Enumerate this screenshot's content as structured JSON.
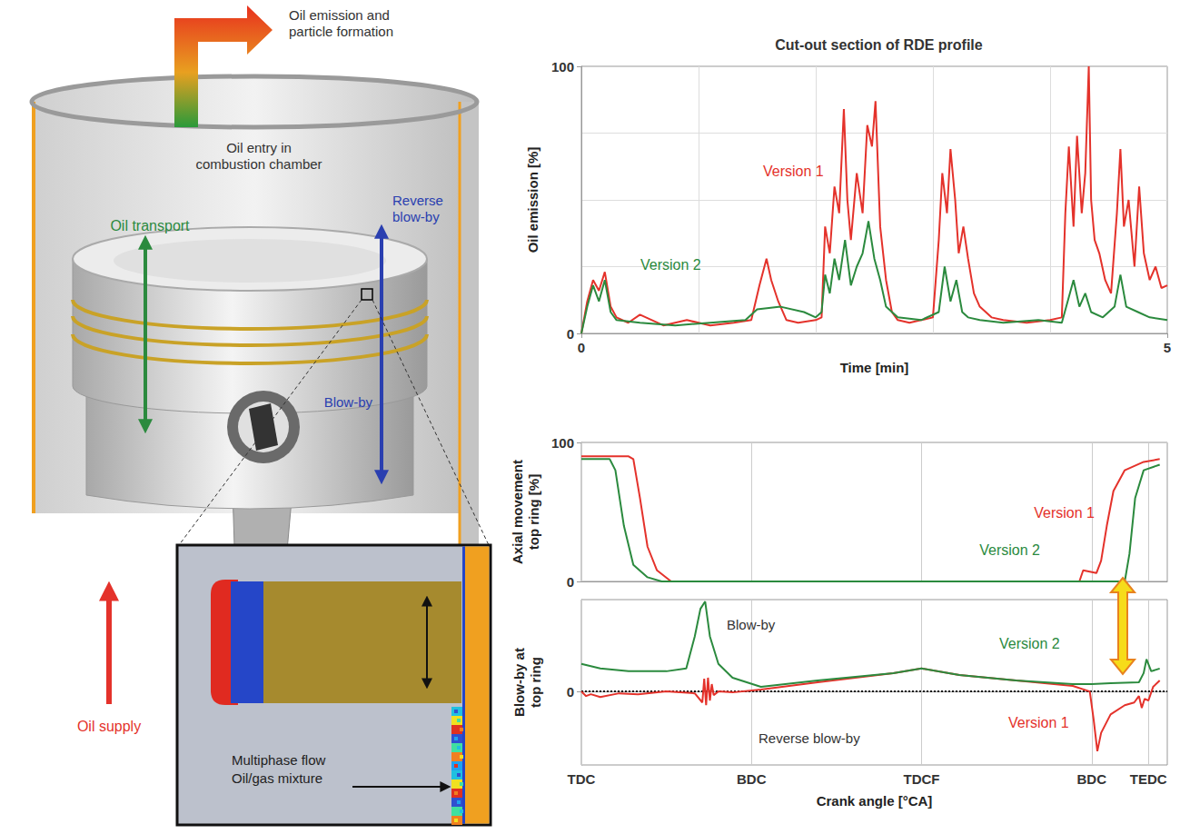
{
  "diagram": {
    "emission_arrow": "Oil emission and particle formation",
    "chamber": "Oil entry in combustion chamber",
    "oil_transport": "Oil transport",
    "reverse_blow_by": "Reverse blow-by",
    "blow_by": "Blow-by",
    "oil_supply": "Oil supply",
    "inset": "Multiphase flow Oil/gas mixture"
  },
  "chart_data": [
    {
      "type": "line",
      "title": "Cut-out section of RDE profile",
      "x_label": "Time [min]",
      "y_label": "Oil emission [%]",
      "xlim": [
        0,
        5
      ],
      "xticks": [
        0,
        5
      ],
      "ylim": [
        0,
        100
      ],
      "yticks": [
        0,
        100
      ],
      "grid": true,
      "series": [
        {
          "name": "Version 1",
          "color": "#e4322b",
          "x": [
            0,
            0.05,
            0.1,
            0.15,
            0.2,
            0.25,
            0.3,
            0.4,
            0.5,
            0.7,
            0.9,
            1.1,
            1.3,
            1.45,
            1.52,
            1.58,
            1.62,
            1.68,
            1.75,
            1.85,
            2.0,
            2.05,
            2.08,
            2.12,
            2.16,
            2.2,
            2.24,
            2.27,
            2.3,
            2.35,
            2.4,
            2.44,
            2.48,
            2.51,
            2.55,
            2.6,
            2.65,
            2.7,
            2.8,
            2.9,
            3.0,
            3.05,
            3.08,
            3.12,
            3.15,
            3.19,
            3.22,
            3.26,
            3.3,
            3.35,
            3.4,
            3.5,
            3.6,
            3.8,
            4.0,
            4.1,
            4.13,
            4.16,
            4.2,
            4.23,
            4.27,
            4.3,
            4.33,
            4.35,
            4.38,
            4.42,
            4.47,
            4.52,
            4.57,
            4.6,
            4.63,
            4.67,
            4.72,
            4.76,
            4.8,
            4.85,
            4.9,
            4.95,
            5.0
          ],
          "values": [
            0,
            12,
            20,
            16,
            23,
            10,
            6,
            4,
            7,
            3,
            5,
            3,
            4,
            5,
            18,
            28,
            20,
            12,
            5,
            4,
            5,
            6,
            40,
            30,
            55,
            45,
            84,
            50,
            35,
            60,
            45,
            78,
            70,
            87,
            40,
            20,
            8,
            5,
            4,
            5,
            6,
            35,
            60,
            45,
            69,
            50,
            30,
            40,
            28,
            15,
            10,
            6,
            5,
            4,
            5,
            6,
            45,
            70,
            40,
            74,
            45,
            60,
            100,
            50,
            35,
            30,
            20,
            15,
            45,
            69,
            40,
            50,
            25,
            55,
            30,
            20,
            25,
            17,
            18
          ]
        },
        {
          "name": "Version 2",
          "color": "#2b8a3e",
          "x": [
            0,
            0.05,
            0.1,
            0.15,
            0.2,
            0.25,
            0.3,
            0.5,
            0.8,
            1.1,
            1.4,
            1.5,
            1.7,
            1.9,
            2.0,
            2.05,
            2.08,
            2.12,
            2.16,
            2.2,
            2.25,
            2.3,
            2.35,
            2.4,
            2.45,
            2.5,
            2.55,
            2.6,
            2.7,
            2.9,
            3.05,
            3.1,
            3.15,
            3.2,
            3.25,
            3.3,
            3.4,
            3.6,
            3.9,
            4.1,
            4.15,
            4.2,
            4.25,
            4.3,
            4.35,
            4.45,
            4.55,
            4.6,
            4.65,
            4.75,
            4.85,
            5.0
          ],
          "values": [
            0,
            10,
            18,
            12,
            20,
            8,
            5,
            4,
            3,
            4,
            5,
            9,
            10,
            8,
            6,
            8,
            22,
            15,
            28,
            20,
            35,
            18,
            25,
            30,
            42,
            28,
            20,
            10,
            6,
            5,
            8,
            25,
            12,
            20,
            8,
            6,
            5,
            4,
            5,
            4,
            12,
            20,
            10,
            15,
            8,
            6,
            10,
            22,
            10,
            8,
            6,
            5
          ]
        }
      ]
    },
    {
      "type": "line",
      "y_label": "Axial movement top ring [%]",
      "xlim": [
        0,
        620
      ],
      "xticks": [
        {
          "value": 0,
          "label": "TDC"
        },
        {
          "value": 180,
          "label": "BDC"
        },
        {
          "value": 360,
          "label": "TDCF"
        },
        {
          "value": 540,
          "label": "BDC"
        },
        {
          "value": 600,
          "label": "TEDC"
        }
      ],
      "ylim": [
        0,
        100
      ],
      "yticks": [
        0,
        100
      ],
      "grid": true,
      "tick_labels": "y",
      "series": [
        {
          "name": "Version 1",
          "color": "#e4322b",
          "x": [
            0,
            50,
            55,
            62,
            70,
            80,
            95,
            527,
            531,
            545,
            550,
            556,
            563,
            575,
            595,
            612
          ],
          "values": [
            90,
            90,
            88,
            60,
            25,
            8,
            0,
            0,
            8,
            6,
            15,
            40,
            65,
            80,
            86,
            88
          ]
        },
        {
          "name": "Version 2",
          "color": "#2b8a3e",
          "x": [
            0,
            30,
            36,
            45,
            55,
            70,
            85,
            575,
            580,
            586,
            595,
            612
          ],
          "values": [
            88,
            88,
            80,
            40,
            12,
            3,
            0,
            0,
            20,
            60,
            80,
            84
          ]
        }
      ]
    },
    {
      "type": "line",
      "x_label": "Crank angle [°CA]",
      "y_label": "Blow-by at top ring",
      "annotations": [
        "Blow-by",
        "Reverse blow-by"
      ],
      "xlim": [
        0,
        620
      ],
      "xticks": [
        {
          "value": 0,
          "label": "TDC"
        },
        {
          "value": 180,
          "label": "BDC"
        },
        {
          "value": 360,
          "label": "TDCF"
        },
        {
          "value": 540,
          "label": "BDC"
        },
        {
          "value": 600,
          "label": "TEDC"
        }
      ],
      "ylim": [
        -80,
        100
      ],
      "yticks": [
        0
      ],
      "grid": true,
      "series": [
        {
          "name": "Version 1",
          "color": "#e4322b",
          "x": [
            0,
            5,
            10,
            20,
            40,
            60,
            90,
            120,
            128,
            130,
            132,
            134,
            136,
            138,
            140,
            145,
            160,
            190,
            250,
            330,
            360,
            400,
            460,
            520,
            538,
            542,
            546,
            550,
            560,
            575,
            585,
            590,
            593,
            596,
            600,
            605,
            612
          ],
          "values": [
            0,
            -5,
            -3,
            -6,
            -2,
            -3,
            0,
            -2,
            -12,
            14,
            -15,
            15,
            -10,
            8,
            -4,
            0,
            -1,
            2,
            10,
            20,
            25,
            18,
            12,
            6,
            0,
            -30,
            -65,
            -45,
            -25,
            -15,
            -12,
            -5,
            -18,
            -8,
            -10,
            5,
            12
          ]
        },
        {
          "name": "Version 2",
          "color": "#2b8a3e",
          "x": [
            0,
            20,
            50,
            90,
            111,
            120,
            126,
            131,
            136,
            145,
            160,
            190,
            250,
            330,
            360,
            400,
            460,
            520,
            540,
            560,
            590,
            595,
            598,
            603,
            612
          ],
          "values": [
            30,
            25,
            22,
            22,
            25,
            60,
            90,
            98,
            60,
            30,
            15,
            5,
            12,
            20,
            25,
            18,
            12,
            8,
            8,
            9,
            10,
            20,
            35,
            22,
            25
          ]
        }
      ]
    }
  ]
}
